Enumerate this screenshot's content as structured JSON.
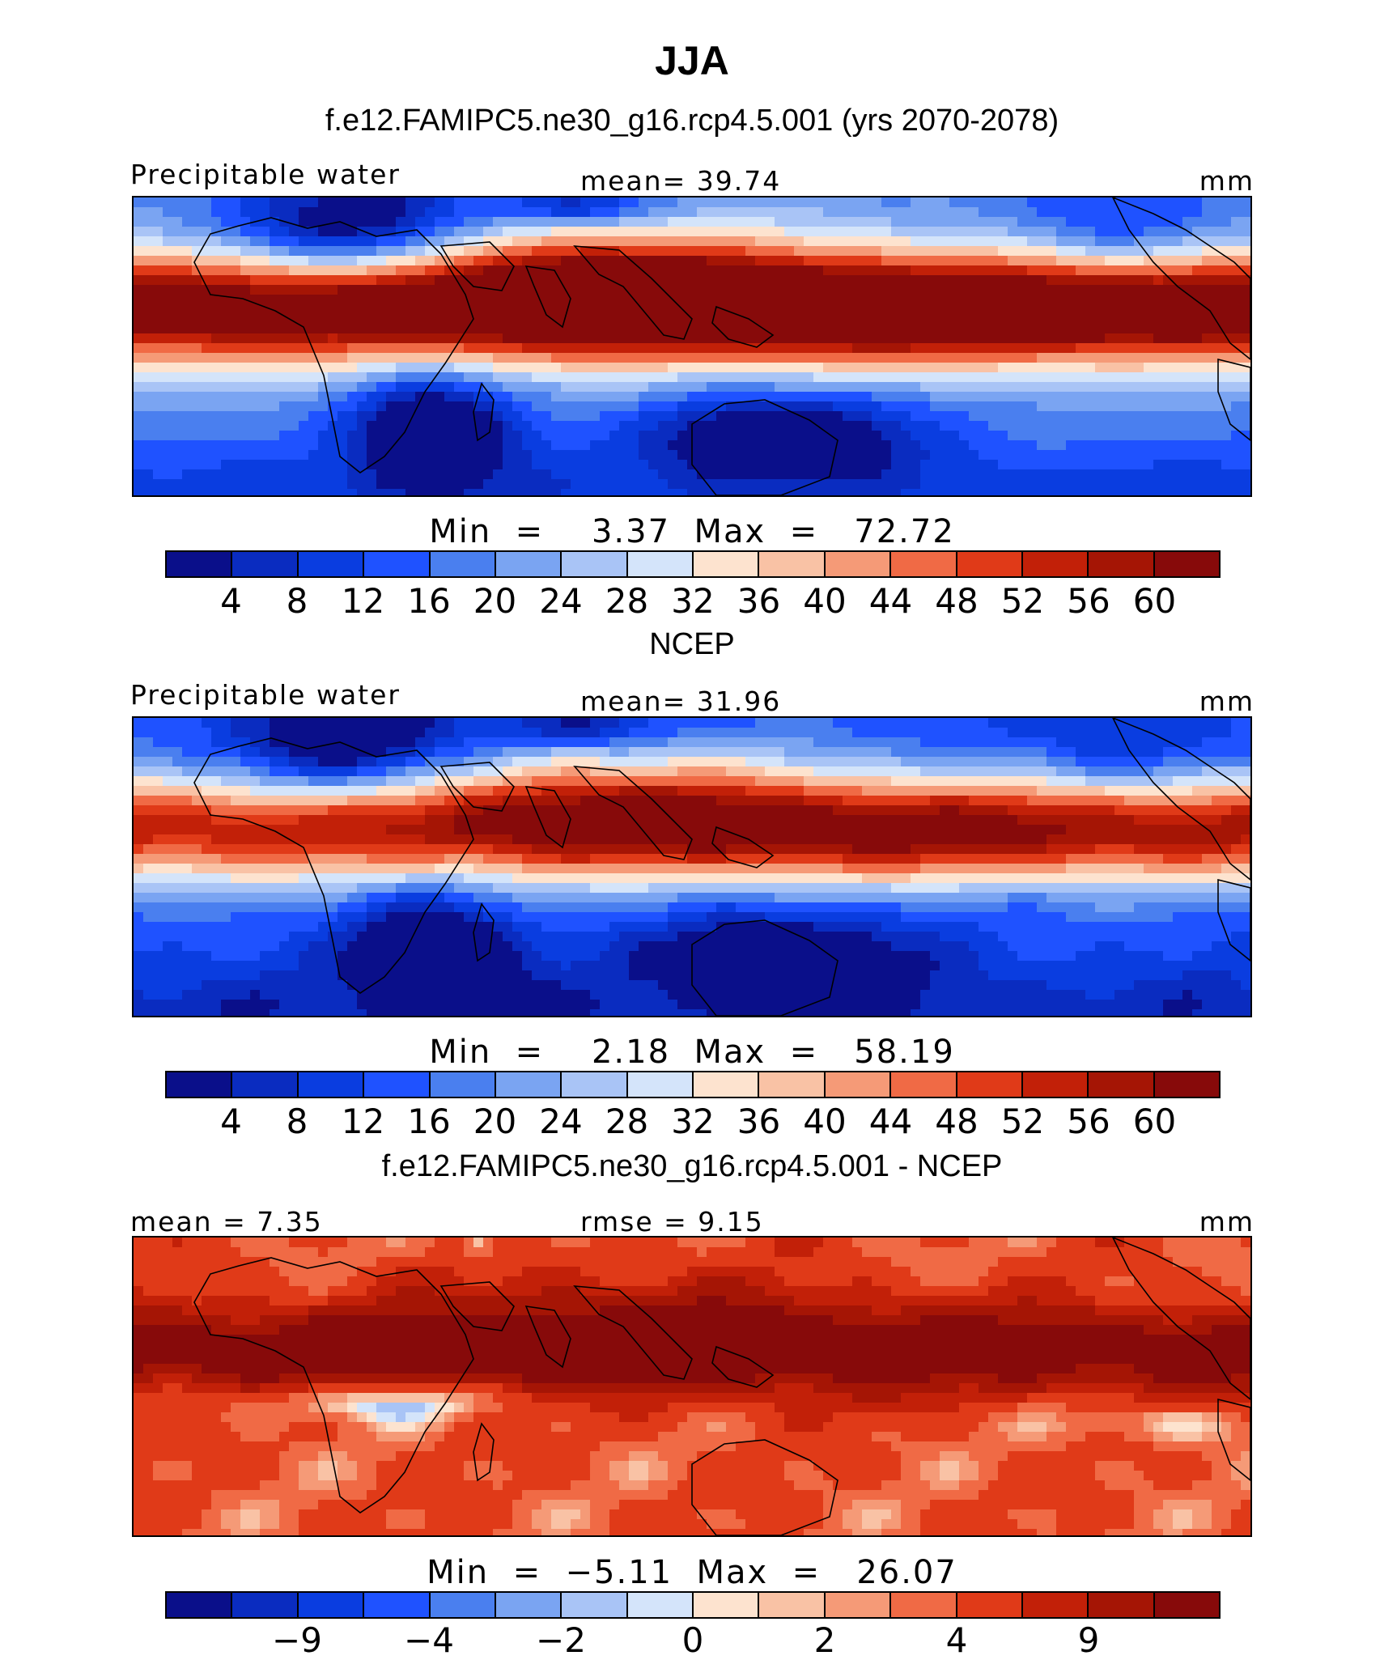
{
  "title": "JJA",
  "palette": [
    "#0a0f8a",
    "#0a2cc0",
    "#0a3de0",
    "#1f52ff",
    "#4a7fef",
    "#7aa4f2",
    "#a9c4f6",
    "#d4e4fa",
    "#fde3cf",
    "#f9c2a5",
    "#f59a77",
    "#f06a45",
    "#e03a18",
    "#c22008",
    "#a51505",
    "#870a0a"
  ],
  "chart_data": [
    {
      "type": "heatmap",
      "title": "f.e12.FAMIPC5.ne30_g16.rcp4.5.001 (yrs 2070-2078)",
      "left_label": "Precipitable water",
      "center_label": "mean=   39.74",
      "units": "mm",
      "mean": 39.74,
      "min": 3.37,
      "max": 72.72,
      "minmax_text": "Min  =    3.37  Max  =   72.72",
      "colorbar_ticks": [
        "4",
        "8",
        "12",
        "16",
        "20",
        "24",
        "28",
        "32",
        "36",
        "40",
        "44",
        "48",
        "52",
        "56",
        "60"
      ],
      "levels": [
        4,
        8,
        12,
        16,
        20,
        24,
        28,
        32,
        36,
        40,
        44,
        48,
        52,
        56,
        60
      ],
      "field": "model"
    },
    {
      "type": "heatmap",
      "title": "NCEP",
      "left_label": "Precipitable water",
      "center_label": "mean=   31.96",
      "units": "mm",
      "mean": 31.96,
      "min": 2.18,
      "max": 58.19,
      "minmax_text": "Min  =    2.18  Max  =   58.19",
      "colorbar_ticks": [
        "4",
        "8",
        "12",
        "16",
        "20",
        "24",
        "28",
        "32",
        "36",
        "40",
        "44",
        "48",
        "52",
        "56",
        "60"
      ],
      "levels": [
        4,
        8,
        12,
        16,
        20,
        24,
        28,
        32,
        36,
        40,
        44,
        48,
        52,
        56,
        60
      ],
      "field": "obs"
    },
    {
      "type": "heatmap",
      "title": "f.e12.FAMIPC5.ne30_g16.rcp4.5.001 - NCEP",
      "left_label": "mean =    7.35",
      "center_label": "rmse =    9.15",
      "units": "mm",
      "mean": 7.35,
      "rmse": 9.15,
      "min": -5.11,
      "max": 26.07,
      "minmax_text": "Min  =  −5.11  Max  =   26.07",
      "colorbar_ticks": [
        {
          "label": "−9",
          "index": 1
        },
        {
          "label": "−4",
          "index": 3
        },
        {
          "label": "−2",
          "index": 5
        },
        {
          "label": "0",
          "index": 7
        },
        {
          "label": "2",
          "index": 9
        },
        {
          "label": "4",
          "index": 11
        },
        {
          "label": "9",
          "index": 13
        }
      ],
      "field": "diff"
    }
  ]
}
